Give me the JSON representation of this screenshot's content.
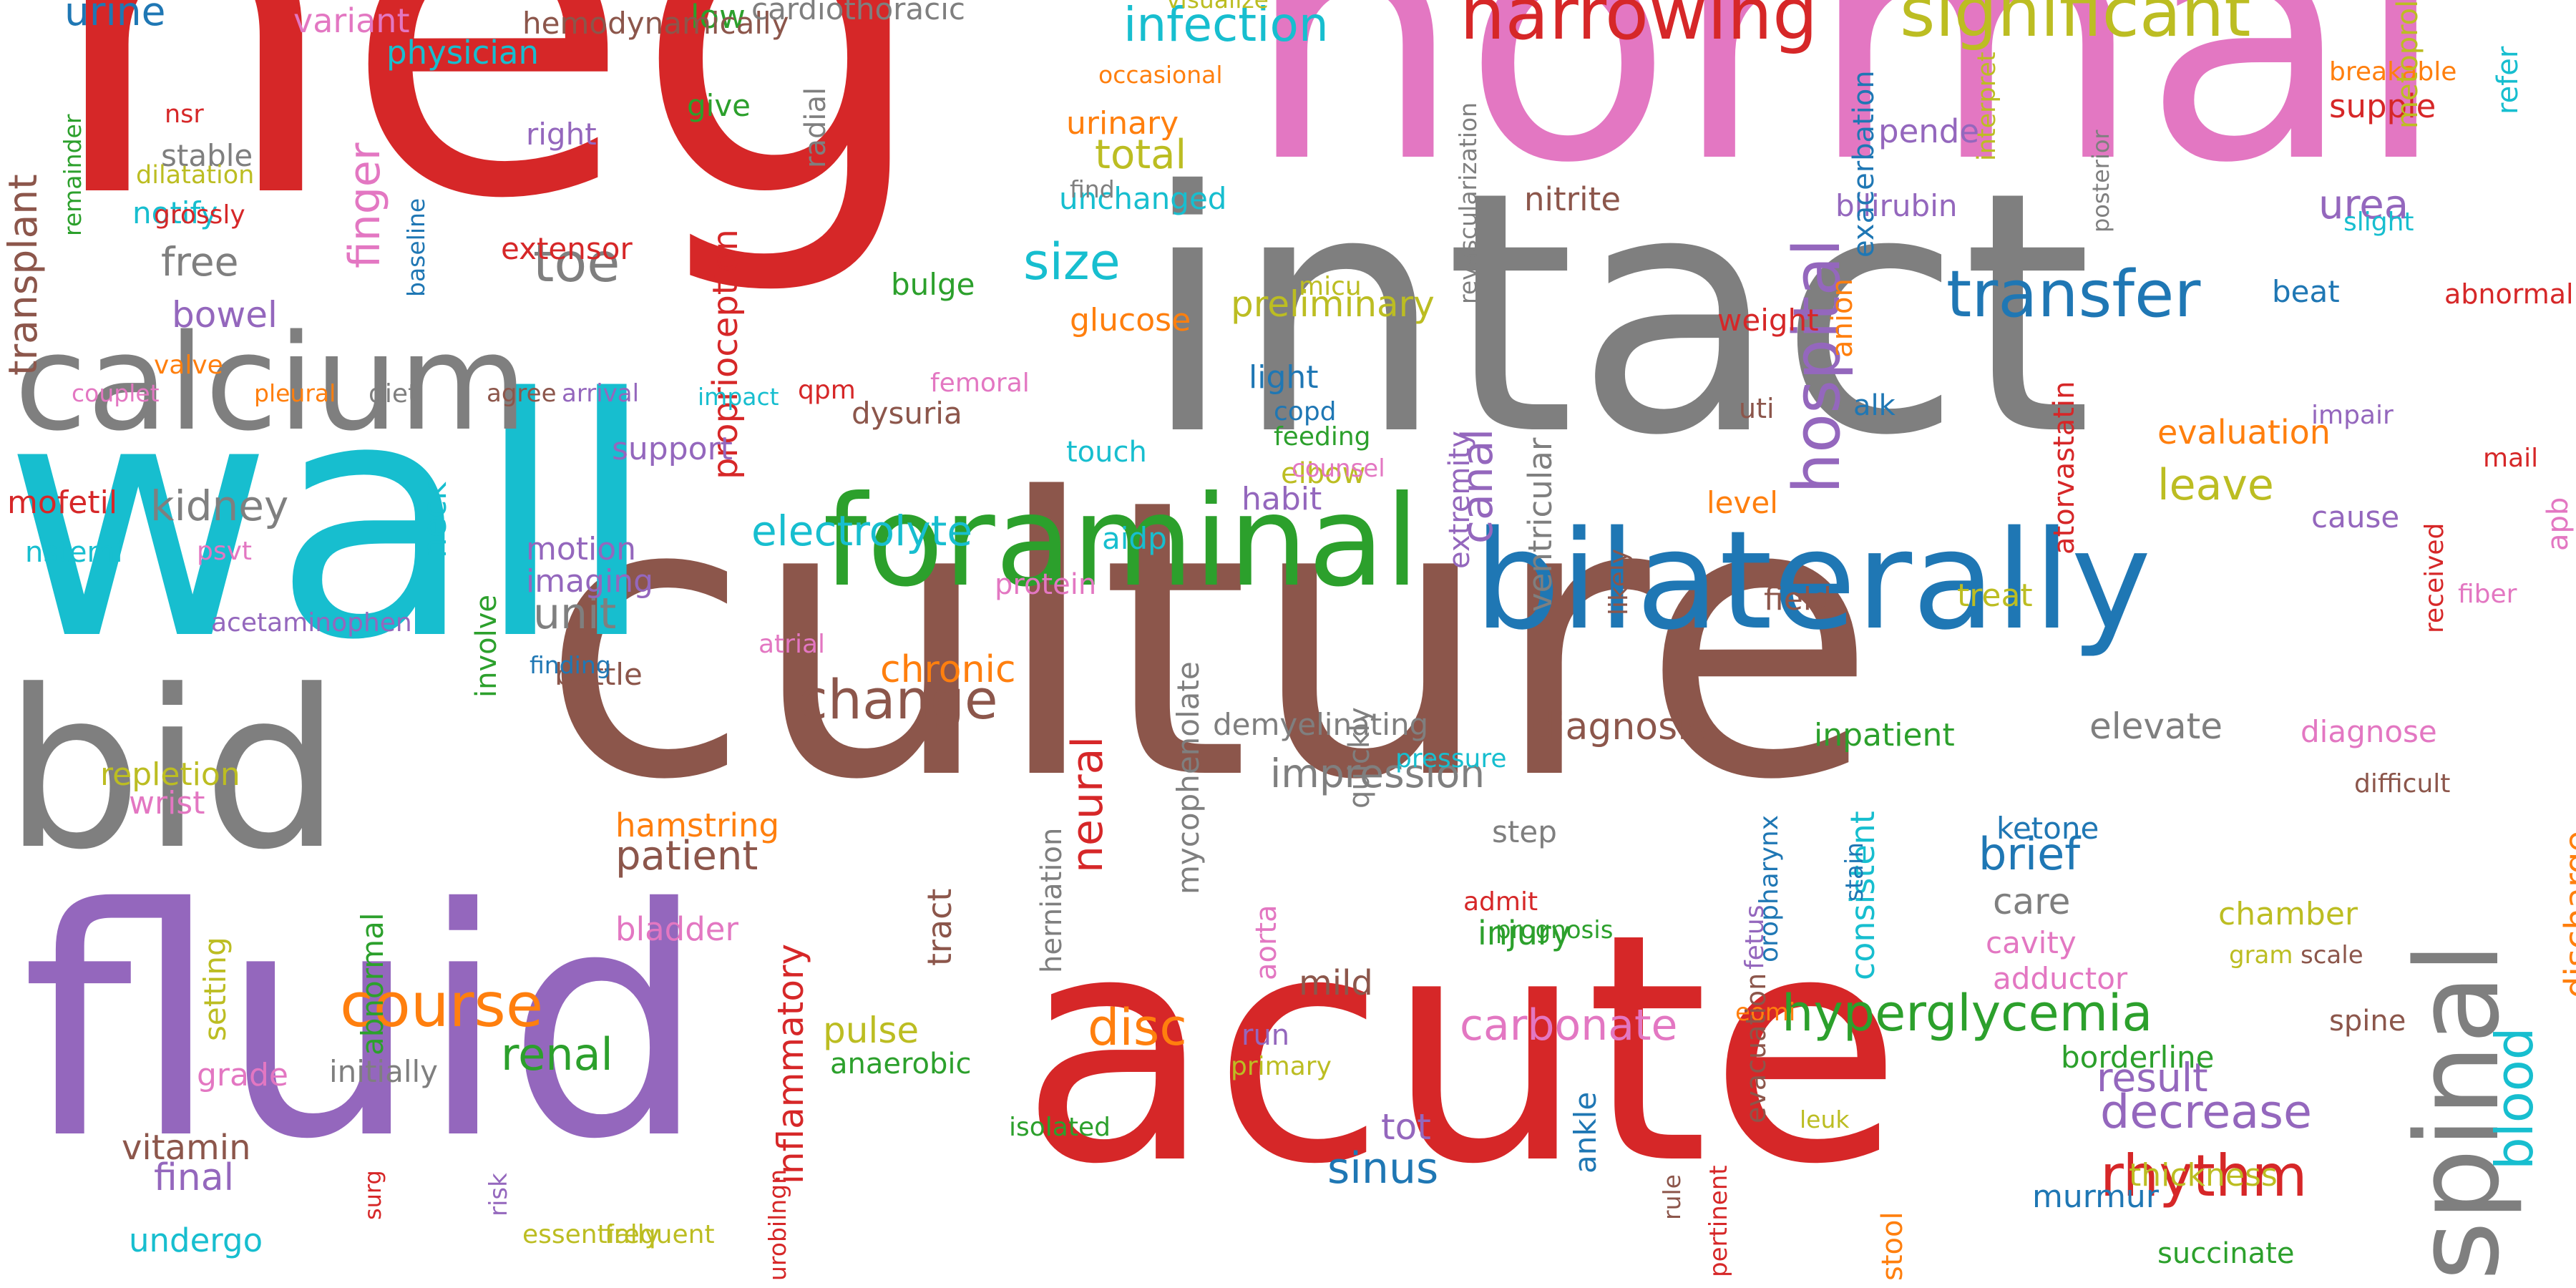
{
  "palette": {
    "red": "#d62728",
    "pink": "#e377c2",
    "gray": "#7f7f7f",
    "cyan": "#17becf",
    "purple": "#9467bd",
    "brown": "#8c564b",
    "blue": "#1f77b4",
    "green": "#2ca02c",
    "olive": "#bcbd22",
    "orange": "#ff7f0e"
  },
  "words": [
    {
      "text": "neg",
      "color": "red"
    },
    {
      "text": "normal",
      "color": "pink"
    },
    {
      "text": "intact",
      "color": "gray"
    },
    {
      "text": "culture",
      "color": "brown"
    },
    {
      "text": "wall",
      "color": "cyan"
    },
    {
      "text": "bid",
      "color": "gray"
    },
    {
      "text": "fluid",
      "color": "purple"
    },
    {
      "text": "acute",
      "color": "red"
    },
    {
      "text": "bilaterally",
      "color": "blue"
    },
    {
      "text": "calcium",
      "color": "gray"
    },
    {
      "text": "foraminal",
      "color": "green"
    },
    {
      "text": "spinal",
      "color": "gray"
    },
    {
      "text": "narrowing",
      "color": "red"
    },
    {
      "text": "significant",
      "color": "olive"
    },
    {
      "text": "transfer",
      "color": "blue"
    },
    {
      "text": "hospital",
      "color": "purple"
    },
    {
      "text": "hyperglycemia",
      "color": "green"
    },
    {
      "text": "rhythm",
      "color": "red"
    },
    {
      "text": "change",
      "color": "brown"
    },
    {
      "text": "course",
      "color": "orange"
    },
    {
      "text": "infection",
      "color": "cyan"
    },
    {
      "text": "blood",
      "color": "cyan"
    },
    {
      "text": "carbonate",
      "color": "pink"
    },
    {
      "text": "electrolyte",
      "color": "cyan"
    },
    {
      "text": "disc",
      "color": "orange"
    },
    {
      "text": "decrease",
      "color": "purple"
    },
    {
      "text": "sinus",
      "color": "blue"
    },
    {
      "text": "renal",
      "color": "green"
    },
    {
      "text": "neural",
      "color": "red"
    },
    {
      "text": "canal",
      "color": "purple"
    },
    {
      "text": "result",
      "color": "purple"
    },
    {
      "text": "size",
      "color": "cyan"
    },
    {
      "text": "kidney",
      "color": "gray"
    },
    {
      "text": "toe",
      "color": "gray"
    },
    {
      "text": "unit",
      "color": "gray"
    },
    {
      "text": "patient",
      "color": "brown"
    },
    {
      "text": "brief",
      "color": "blue"
    },
    {
      "text": "leave",
      "color": "olive"
    },
    {
      "text": "diagnosis",
      "color": "brown"
    },
    {
      "text": "elevate",
      "color": "gray"
    },
    {
      "text": "finger",
      "color": "pink"
    },
    {
      "text": "bowel",
      "color": "purple"
    },
    {
      "text": "urine",
      "color": "blue"
    },
    {
      "text": "total",
      "color": "olive"
    },
    {
      "text": "free",
      "color": "gray"
    },
    {
      "text": "care",
      "color": "gray"
    },
    {
      "text": "tot",
      "color": "purple"
    },
    {
      "text": "final",
      "color": "purple"
    },
    {
      "text": "vitamin",
      "color": "brown"
    },
    {
      "text": "urea",
      "color": "purple"
    },
    {
      "text": "preliminary",
      "color": "olive"
    },
    {
      "text": "inflammatory",
      "color": "red"
    },
    {
      "text": "impression",
      "color": "gray"
    },
    {
      "text": "chronic",
      "color": "orange"
    },
    {
      "text": "evaluation",
      "color": "orange"
    },
    {
      "text": "mild",
      "color": "brown"
    },
    {
      "text": "pulse",
      "color": "olive"
    },
    {
      "text": "discharge",
      "color": "orange"
    },
    {
      "text": "transplant",
      "color": "brown"
    },
    {
      "text": "proprioception",
      "color": "red"
    },
    {
      "text": "consistent",
      "color": "cyan"
    },
    {
      "text": "ankle",
      "color": "blue"
    },
    {
      "text": "step",
      "color": "gray"
    },
    {
      "text": "injury",
      "color": "green"
    },
    {
      "text": "ketone",
      "color": "blue"
    },
    {
      "text": "cavity",
      "color": "pink"
    },
    {
      "text": "chamber",
      "color": "olive"
    },
    {
      "text": "thickness",
      "color": "olive"
    },
    {
      "text": "succinate",
      "color": "green"
    },
    {
      "text": "borderline",
      "color": "green"
    },
    {
      "text": "adductor",
      "color": "pink"
    },
    {
      "text": "motion",
      "color": "purple"
    },
    {
      "text": "imaging",
      "color": "purple"
    },
    {
      "text": "bottle",
      "color": "brown"
    },
    {
      "text": "light",
      "color": "blue"
    },
    {
      "text": "habit",
      "color": "purple"
    },
    {
      "text": "dysuria",
      "color": "brown"
    },
    {
      "text": "aidp",
      "color": "cyan"
    },
    {
      "text": "glucose",
      "color": "orange"
    },
    {
      "text": "bulge",
      "color": "green"
    },
    {
      "text": "unchanged",
      "color": "cyan"
    },
    {
      "text": "urinary",
      "color": "orange"
    },
    {
      "text": "extensor",
      "color": "red"
    },
    {
      "text": "notify",
      "color": "cyan"
    },
    {
      "text": "stable",
      "color": "gray"
    },
    {
      "text": "right",
      "color": "purple"
    },
    {
      "text": "give",
      "color": "green"
    },
    {
      "text": "low",
      "color": "green"
    },
    {
      "text": "physician",
      "color": "cyan"
    },
    {
      "text": "variant",
      "color": "pink"
    },
    {
      "text": "hemodynamically",
      "color": "brown"
    },
    {
      "text": "cardiothoracic",
      "color": "gray"
    },
    {
      "text": "visualize",
      "color": "olive"
    },
    {
      "text": "occasional",
      "color": "orange"
    },
    {
      "text": "find",
      "color": "gray"
    },
    {
      "text": "nitrite",
      "color": "brown"
    },
    {
      "text": "pende",
      "color": "purple"
    },
    {
      "text": "supple",
      "color": "red"
    },
    {
      "text": "breakable",
      "color": "orange"
    },
    {
      "text": "metoprolol",
      "color": "olive"
    },
    {
      "text": "refer",
      "color": "cyan"
    },
    {
      "text": "slight",
      "color": "cyan"
    },
    {
      "text": "beat",
      "color": "blue"
    },
    {
      "text": "abnormality",
      "color": "red"
    },
    {
      "text": "apb",
      "color": "pink"
    },
    {
      "text": "mail",
      "color": "red"
    },
    {
      "text": "cause",
      "color": "purple"
    },
    {
      "text": "impair",
      "color": "purple"
    },
    {
      "text": "alk",
      "color": "blue"
    },
    {
      "text": "uti",
      "color": "brown"
    },
    {
      "text": "weight",
      "color": "red"
    },
    {
      "text": "level",
      "color": "orange"
    },
    {
      "text": "anion",
      "color": "orange"
    },
    {
      "text": "bilirubin",
      "color": "purple"
    },
    {
      "text": "exacerbation",
      "color": "blue"
    },
    {
      "text": "interpret",
      "color": "olive"
    },
    {
      "text": "posterior",
      "color": "gray"
    },
    {
      "text": "atorvastatin",
      "color": "red"
    },
    {
      "text": "ventricular",
      "color": "gray"
    },
    {
      "text": "likely",
      "color": "brown"
    },
    {
      "text": "field",
      "color": "brown"
    },
    {
      "text": "treat",
      "color": "olive"
    },
    {
      "text": "inpatient",
      "color": "green"
    },
    {
      "text": "diagnose",
      "color": "pink"
    },
    {
      "text": "difficult",
      "color": "brown"
    },
    {
      "text": "received",
      "color": "red"
    },
    {
      "text": "fiber",
      "color": "pink"
    },
    {
      "text": "extremity",
      "color": "purple"
    },
    {
      "text": "copd",
      "color": "blue"
    },
    {
      "text": "feeding",
      "color": "green"
    },
    {
      "text": "elbow",
      "color": "olive"
    },
    {
      "text": "counsel",
      "color": "pink"
    },
    {
      "text": "micu",
      "color": "olive"
    },
    {
      "text": "revascularization",
      "color": "gray"
    },
    {
      "text": "radial",
      "color": "gray"
    },
    {
      "text": "femoral",
      "color": "pink"
    },
    {
      "text": "qpm",
      "color": "red"
    },
    {
      "text": "touch",
      "color": "cyan"
    },
    {
      "text": "protein",
      "color": "pink"
    },
    {
      "text": "support",
      "color": "purple"
    },
    {
      "text": "mofetil",
      "color": "red"
    },
    {
      "text": "nstemi",
      "color": "cyan"
    },
    {
      "text": "psvt",
      "color": "pink"
    },
    {
      "text": "couplet",
      "color": "pink"
    },
    {
      "text": "pleural",
      "color": "orange"
    },
    {
      "text": "diet",
      "color": "gray"
    },
    {
      "text": "agree",
      "color": "brown"
    },
    {
      "text": "arrival",
      "color": "purple"
    },
    {
      "text": "impact",
      "color": "cyan"
    },
    {
      "text": "valve",
      "color": "orange"
    },
    {
      "text": "baseline",
      "color": "blue"
    },
    {
      "text": "nsr",
      "color": "red"
    },
    {
      "text": "dilatation",
      "color": "olive"
    },
    {
      "text": "grossly",
      "color": "red"
    },
    {
      "text": "remainder",
      "color": "green"
    },
    {
      "text": "acetaminophen",
      "color": "purple"
    },
    {
      "text": "finding",
      "color": "blue"
    },
    {
      "text": "neck",
      "color": "cyan"
    },
    {
      "text": "involve",
      "color": "green"
    },
    {
      "text": "atrial",
      "color": "pink"
    },
    {
      "text": "repletion",
      "color": "olive"
    },
    {
      "text": "wrist",
      "color": "pink"
    },
    {
      "text": "abnormal",
      "color": "green"
    },
    {
      "text": "setting",
      "color": "olive"
    },
    {
      "text": "hamstring",
      "color": "orange"
    },
    {
      "text": "bladder",
      "color": "pink"
    },
    {
      "text": "tract",
      "color": "brown"
    },
    {
      "text": "mycophenolate",
      "color": "gray"
    },
    {
      "text": "demyelinating",
      "color": "gray"
    },
    {
      "text": "herniation",
      "color": "gray"
    },
    {
      "text": "aorta",
      "color": "pink"
    },
    {
      "text": "quickly",
      "color": "gray"
    },
    {
      "text": "pressure",
      "color": "cyan"
    },
    {
      "text": "prognosis",
      "color": "green"
    },
    {
      "text": "admit",
      "color": "red"
    },
    {
      "text": "eomi",
      "color": "orange"
    },
    {
      "text": "oropharynx",
      "color": "blue"
    },
    {
      "text": "fetus",
      "color": "purple"
    },
    {
      "text": "stain",
      "color": "blue"
    },
    {
      "text": "gram",
      "color": "olive"
    },
    {
      "text": "scale",
      "color": "brown"
    },
    {
      "text": "spine",
      "color": "brown"
    },
    {
      "text": "initially",
      "color": "gray"
    },
    {
      "text": "anaerobic",
      "color": "green"
    },
    {
      "text": "run",
      "color": "purple"
    },
    {
      "text": "primary",
      "color": "olive"
    },
    {
      "text": "grade",
      "color": "pink"
    },
    {
      "text": "undergo",
      "color": "cyan"
    },
    {
      "text": "surg",
      "color": "red"
    },
    {
      "text": "risk",
      "color": "purple"
    },
    {
      "text": "essentially",
      "color": "olive"
    },
    {
      "text": "frequent",
      "color": "olive"
    },
    {
      "text": "urobilngn",
      "color": "red"
    },
    {
      "text": "isolated",
      "color": "green"
    },
    {
      "text": "evacuation",
      "color": "brown"
    },
    {
      "text": "rule",
      "color": "brown"
    },
    {
      "text": "pertinent",
      "color": "red"
    },
    {
      "text": "leuk",
      "color": "olive"
    },
    {
      "text": "stool",
      "color": "orange"
    },
    {
      "text": "murmur",
      "color": "blue"
    }
  ]
}
